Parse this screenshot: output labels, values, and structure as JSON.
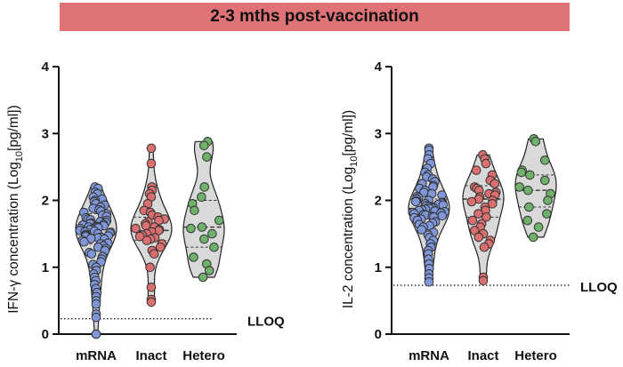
{
  "banner": {
    "title": "2-3 mths post-vaccination",
    "color": "#df7276"
  },
  "colors": {
    "mRNA": "#7f96d8",
    "Inact": "#d96f6f",
    "Hetero": "#6fb06a",
    "violin_fill": "#d9d9d9",
    "stroke": "#222222"
  },
  "chart_data": [
    {
      "type": "violin-scatter",
      "ylabel": {
        "main": "IFN-γ concentration (Log",
        "sub": "10",
        "tail": "[pg/ml])"
      },
      "ylim": [
        0,
        4
      ],
      "yticks": [
        "0",
        "1",
        "2",
        "3",
        "4"
      ],
      "categories": [
        "mRNA",
        "Inact",
        "Hetero"
      ],
      "lloq": {
        "value": 0.23,
        "label": "LLOQ"
      },
      "series": [
        {
          "category": "mRNA",
          "median": 1.58,
          "q1": 1.35,
          "q3": 1.8,
          "min": 0.0,
          "max": 2.2,
          "values": [
            2.2,
            2.18,
            2.12,
            2.1,
            2.05,
            2.02,
            2.0,
            1.98,
            1.95,
            1.93,
            1.9,
            1.88,
            1.86,
            1.84,
            1.82,
            1.8,
            1.78,
            1.76,
            1.74,
            1.72,
            1.71,
            1.7,
            1.68,
            1.67,
            1.66,
            1.65,
            1.64,
            1.63,
            1.62,
            1.61,
            1.6,
            1.6,
            1.59,
            1.58,
            1.57,
            1.56,
            1.55,
            1.54,
            1.53,
            1.52,
            1.51,
            1.5,
            1.49,
            1.48,
            1.47,
            1.46,
            1.45,
            1.44,
            1.43,
            1.42,
            1.4,
            1.38,
            1.36,
            1.35,
            1.32,
            1.3,
            1.28,
            1.25,
            1.22,
            1.2,
            1.16,
            1.12,
            1.08,
            1.04,
            1.0,
            0.95,
            0.9,
            0.85,
            0.8,
            0.74,
            0.68,
            0.62,
            0.56,
            0.5,
            0.45,
            0.3,
            0.25,
            0.0,
            0.0
          ]
        },
        {
          "category": "Inact",
          "median": 1.55,
          "q1": 1.4,
          "q3": 1.75,
          "min": 0.48,
          "max": 2.78,
          "values": [
            2.78,
            2.55,
            2.2,
            2.15,
            2.1,
            2.05,
            1.95,
            1.85,
            1.82,
            1.78,
            1.75,
            1.72,
            1.7,
            1.68,
            1.65,
            1.62,
            1.6,
            1.58,
            1.56,
            1.55,
            1.53,
            1.5,
            1.48,
            1.46,
            1.44,
            1.42,
            1.4,
            1.35,
            1.3,
            1.25,
            1.2,
            1.0,
            0.7,
            0.52,
            0.48
          ]
        },
        {
          "category": "Hetero",
          "median": 1.6,
          "q1": 1.3,
          "q3": 2.0,
          "min": 0.85,
          "max": 2.88,
          "values": [
            2.88,
            2.82,
            2.65,
            2.2,
            2.05,
            1.95,
            1.85,
            1.7,
            1.6,
            1.58,
            1.5,
            1.42,
            1.3,
            1.15,
            1.05,
            0.95,
            0.85
          ]
        }
      ]
    },
    {
      "type": "violin-scatter",
      "ylabel": {
        "main": "IL-2 concentration (Log",
        "sub": "10",
        "tail": "[pg/ml])"
      },
      "ylim": [
        0,
        4
      ],
      "yticks": [
        "0",
        "1",
        "2",
        "3",
        "4"
      ],
      "categories": [
        "mRNA",
        "Inact",
        "Hetero"
      ],
      "lloq": {
        "value": 0.73,
        "label": "LLOQ"
      },
      "series": [
        {
          "category": "mRNA",
          "median": 1.88,
          "q1": 1.75,
          "q3": 2.02,
          "min": 0.78,
          "max": 2.78,
          "values": [
            2.78,
            2.75,
            2.68,
            2.62,
            2.55,
            2.48,
            2.42,
            2.38,
            2.35,
            2.32,
            2.28,
            2.25,
            2.22,
            2.2,
            2.18,
            2.15,
            2.12,
            2.1,
            2.08,
            2.06,
            2.04,
            2.02,
            2.0,
            1.99,
            1.98,
            1.97,
            1.96,
            1.95,
            1.94,
            1.93,
            1.92,
            1.91,
            1.9,
            1.89,
            1.88,
            1.87,
            1.86,
            1.85,
            1.84,
            1.83,
            1.82,
            1.81,
            1.8,
            1.79,
            1.78,
            1.77,
            1.76,
            1.75,
            1.74,
            1.72,
            1.7,
            1.68,
            1.66,
            1.64,
            1.62,
            1.6,
            1.56,
            1.52,
            1.48,
            1.44,
            1.4,
            1.35,
            1.3,
            1.25,
            1.2,
            1.12,
            1.05,
            0.98,
            0.9,
            0.84,
            0.78
          ]
        },
        {
          "category": "Inact",
          "median": 2.02,
          "q1": 1.75,
          "q3": 2.22,
          "min": 0.8,
          "max": 2.68,
          "values": [
            2.68,
            2.62,
            2.55,
            2.45,
            2.38,
            2.3,
            2.25,
            2.2,
            2.18,
            2.15,
            2.12,
            2.1,
            2.08,
            2.05,
            2.02,
            2.0,
            1.98,
            1.95,
            1.9,
            1.85,
            1.8,
            1.75,
            1.7,
            1.65,
            1.6,
            1.55,
            1.5,
            1.45,
            1.4,
            1.35,
            1.3,
            0.85,
            0.8
          ]
        },
        {
          "category": "Hetero",
          "median": 2.15,
          "q1": 1.9,
          "q3": 2.38,
          "min": 1.45,
          "max": 2.92,
          "values": [
            2.92,
            2.88,
            2.6,
            2.45,
            2.42,
            2.38,
            2.3,
            2.2,
            2.15,
            2.1,
            2.0,
            1.9,
            1.8,
            1.7,
            1.6,
            1.45
          ]
        }
      ]
    }
  ]
}
